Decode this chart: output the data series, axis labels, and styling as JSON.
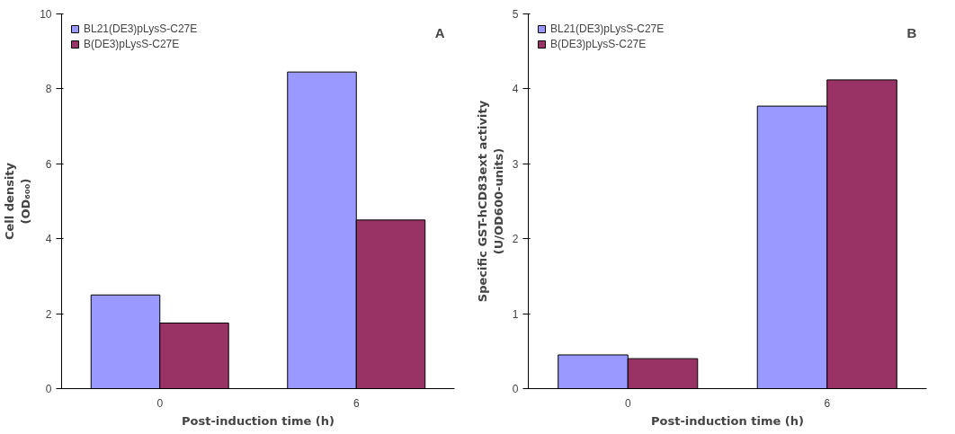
{
  "chart_data": [
    {
      "type": "bar",
      "xlabel": "Post-induction time (h)",
      "ylabel": "Cell density\n(OD₆₀₀)",
      "categories": [
        "0",
        "6"
      ],
      "ylim": [
        0,
        10
      ],
      "yticks": [
        0,
        2,
        4,
        6,
        8,
        10
      ],
      "legend": "top left",
      "annotations": [
        "A"
      ],
      "series": [
        {
          "name": "BL21(DE3)pLysS-C27E",
          "color": "#9999ff",
          "values": [
            2.5,
            8.45
          ]
        },
        {
          "name": "B(DE3)pLysS-C27E",
          "color": "#993366",
          "values": [
            1.75,
            4.5
          ]
        }
      ]
    },
    {
      "type": "bar",
      "xlabel": "Post-induction time (h)",
      "ylabel": "Specific GST-hCD83ext activity\n(U/OD600-units)",
      "categories": [
        "0",
        "6"
      ],
      "ylim": [
        0,
        5
      ],
      "yticks": [
        0,
        1,
        2,
        3,
        4,
        5
      ],
      "legend": "top left",
      "annotations": [
        "B"
      ],
      "series": [
        {
          "name": "BL21(DE3)pLysS-C27E",
          "color": "#9999ff",
          "values": [
            0.45,
            3.77
          ]
        },
        {
          "name": "B(DE3)pLysS-C27E",
          "color": "#993366",
          "values": [
            0.4,
            4.12
          ]
        }
      ]
    }
  ]
}
